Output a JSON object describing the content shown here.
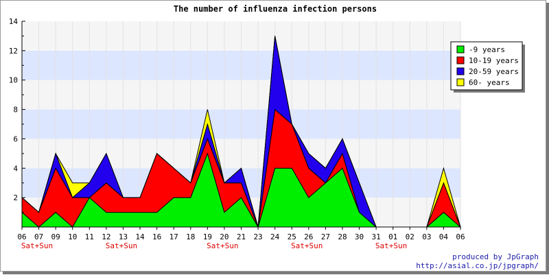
{
  "chart_data": {
    "type": "area",
    "stacked": true,
    "title": "The number of influenza infection persons",
    "xlabel": "",
    "ylabel": "",
    "ylim": [
      0,
      14
    ],
    "yticks": [
      2,
      4,
      6,
      8,
      10,
      12,
      14
    ],
    "grid": "horizontal bands",
    "legend_position": "top-right",
    "categories": [
      "06",
      "07",
      "09",
      "10",
      "11",
      "12",
      "13",
      "14",
      "16",
      "17",
      "18",
      "19",
      "20",
      "21",
      "23",
      "24",
      "25",
      "26",
      "27",
      "28",
      "30",
      "31",
      "01",
      "02",
      "03",
      "04",
      "06"
    ],
    "weekend_markers": [
      {
        "index": 0,
        "text": "Sat+Sun"
      },
      {
        "index": 5,
        "text": "Sat+Sun"
      },
      {
        "index": 11,
        "text": "Sat+Sun"
      },
      {
        "index": 16,
        "text": "Sat+Sun"
      },
      {
        "index": 21,
        "text": "Sat+Sun"
      }
    ],
    "series": [
      {
        "name": "-9 years",
        "color": "#00ee00",
        "values": [
          1,
          0,
          1,
          0,
          2,
          1,
          1,
          1,
          1,
          2,
          2,
          5,
          1,
          2,
          0,
          4,
          4,
          2,
          3,
          4,
          1,
          0,
          0,
          0,
          0,
          1,
          0
        ]
      },
      {
        "name": "10-19 years",
        "color": "#ff0000",
        "values": [
          1,
          1,
          3,
          2,
          0,
          2,
          1,
          1,
          4,
          2,
          1,
          1,
          2,
          1,
          0,
          4,
          3,
          2,
          0,
          1,
          0,
          0,
          0,
          0,
          0,
          2,
          0
        ]
      },
      {
        "name": "20-59 years",
        "color": "#2200ee",
        "values": [
          0,
          0,
          1,
          0,
          1,
          2,
          0,
          0,
          0,
          0,
          0,
          1,
          0,
          1,
          0,
          5,
          0,
          1,
          1,
          1,
          2,
          0,
          0,
          0,
          0,
          0,
          0
        ]
      },
      {
        "name": "60- years",
        "color": "#ffff00",
        "values": [
          0,
          0,
          0,
          1,
          0,
          0,
          0,
          0,
          0,
          0,
          0,
          1,
          0,
          0,
          0,
          0,
          0,
          0,
          0,
          0,
          0,
          0,
          0,
          0,
          0,
          1,
          0
        ]
      }
    ]
  },
  "credits": {
    "line1": "produced by JpGraph",
    "line2": "http://asial.co.jp/jpgraph/"
  }
}
